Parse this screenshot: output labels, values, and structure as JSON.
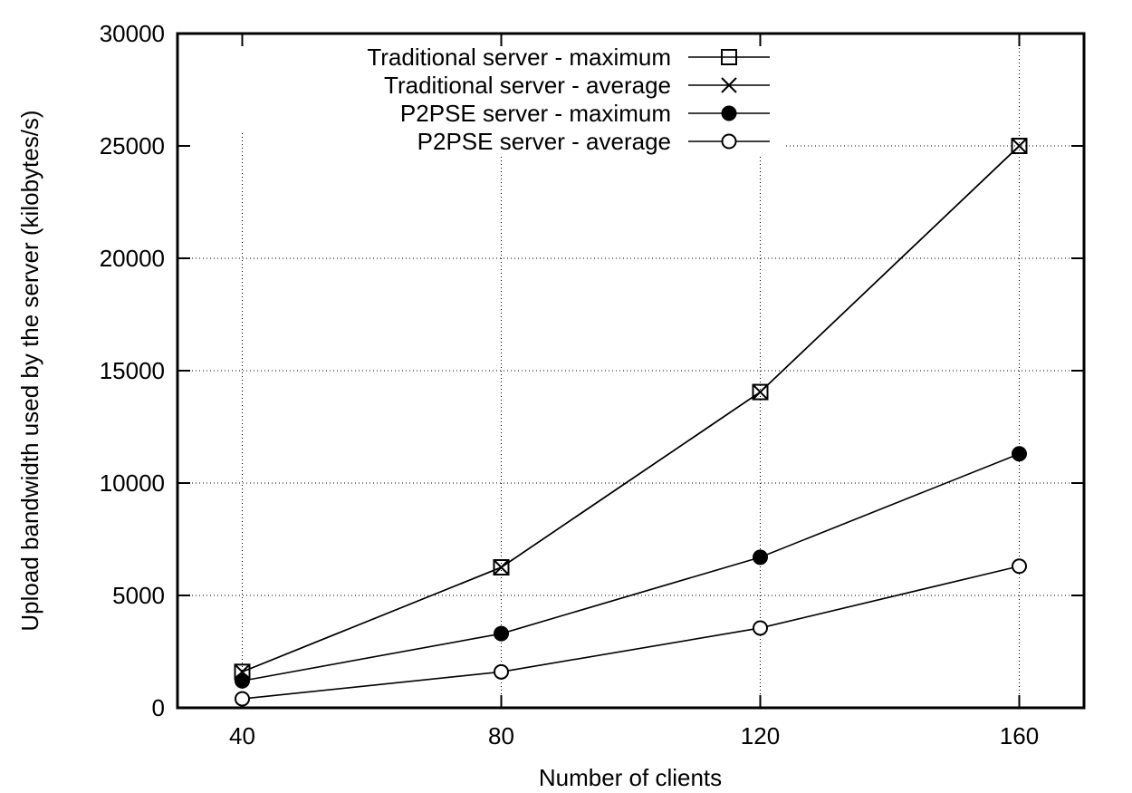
{
  "chart_data": {
    "type": "line",
    "title": "",
    "xlabel": "Number of clients",
    "ylabel": "Upload bandwidth used by the server (kilobytes/s)",
    "x": [
      40,
      80,
      120,
      160
    ],
    "xlim": [
      30,
      170
    ],
    "ylim": [
      0,
      30000
    ],
    "xticks": [
      40,
      80,
      120,
      160
    ],
    "yticks": [
      0,
      5000,
      10000,
      15000,
      20000,
      25000,
      30000
    ],
    "grid": true,
    "legend_position": "top-center",
    "series": [
      {
        "name": "Traditional server - maximum",
        "marker": "open-square",
        "values": [
          1600,
          6250,
          14050,
          25000
        ]
      },
      {
        "name": "Traditional server - average",
        "marker": "cross",
        "values": [
          1600,
          6250,
          14050,
          25000
        ]
      },
      {
        "name": "P2PSE server - maximum",
        "marker": "filled-circle",
        "values": [
          1200,
          3300,
          6700,
          11300
        ]
      },
      {
        "name": "P2PSE server - average",
        "marker": "open-circle",
        "values": [
          400,
          1600,
          3550,
          6300
        ]
      }
    ]
  }
}
